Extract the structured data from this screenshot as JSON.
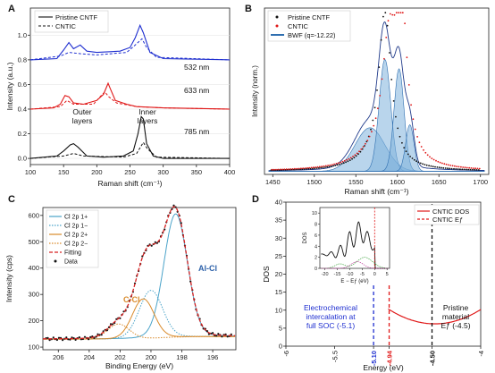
{
  "panel_labels": [
    "A",
    "B",
    "C",
    "D"
  ],
  "colors": {
    "black": "#111111",
    "blue": "#1f2fd0",
    "red": "#e01818",
    "steel": "#2a5fa8",
    "cl1p": "#4aa3c9",
    "cl2p": "#d98a2a",
    "fit": "#d62020",
    "navy": "#203a8a",
    "bwf": "#2f6fb0",
    "fill": "#7fb3dc"
  },
  "chart_data": [
    {
      "id": "A",
      "type": "line",
      "xlabel": "Raman shift (cm⁻¹)",
      "ylabel": "Intensity (a.u.)",
      "xlim": [
        100,
        400
      ],
      "ylim": [
        -0.05,
        1.22
      ],
      "xticks": [
        100,
        150,
        200,
        250,
        300,
        350,
        400
      ],
      "yticks": [
        0.0,
        0.2,
        0.4,
        0.6,
        0.8,
        1.0
      ],
      "legend": [
        "Pristine CNTF",
        "CNTIC"
      ],
      "legend_position": "top-left",
      "series": [
        {
          "name": "785 nm",
          "color": "black",
          "offset": 0.0,
          "solid": [
            [
              100,
              0.0
            ],
            [
              140,
              0.02
            ],
            [
              150,
              0.06
            ],
            [
              160,
              0.11
            ],
            [
              165,
              0.12
            ],
            [
              172,
              0.09
            ],
            [
              185,
              0.02
            ],
            [
              210,
              0.01
            ],
            [
              240,
              0.02
            ],
            [
              255,
              0.06
            ],
            [
              262,
              0.2
            ],
            [
              267,
              0.34
            ],
            [
              270,
              0.32
            ],
            [
              275,
              0.12
            ],
            [
              285,
              0.02
            ],
            [
              300,
              0.0
            ],
            [
              400,
              0.0
            ]
          ],
          "dashed": [
            [
              100,
              0.0
            ],
            [
              150,
              0.02
            ],
            [
              165,
              0.04
            ],
            [
              180,
              0.02
            ],
            [
              240,
              0.01
            ],
            [
              260,
              0.04
            ],
            [
              270,
              0.13
            ],
            [
              276,
              0.08
            ],
            [
              290,
              0.01
            ],
            [
              400,
              0.0
            ]
          ]
        },
        {
          "name": "633 nm",
          "color": "red",
          "offset": 0.0,
          "solid": [
            [
              100,
              0.4
            ],
            [
              135,
              0.41
            ],
            [
              145,
              0.44
            ],
            [
              152,
              0.51
            ],
            [
              158,
              0.5
            ],
            [
              165,
              0.45
            ],
            [
              180,
              0.44
            ],
            [
              200,
              0.47
            ],
            [
              210,
              0.52
            ],
            [
              217,
              0.61
            ],
            [
              220,
              0.57
            ],
            [
              228,
              0.47
            ],
            [
              245,
              0.44
            ],
            [
              260,
              0.42
            ],
            [
              300,
              0.41
            ],
            [
              400,
              0.4
            ]
          ],
          "dashed": [
            [
              100,
              0.4
            ],
            [
              145,
              0.42
            ],
            [
              155,
              0.47
            ],
            [
              165,
              0.44
            ],
            [
              195,
              0.44
            ],
            [
              205,
              0.5
            ],
            [
              212,
              0.54
            ],
            [
              218,
              0.5
            ],
            [
              230,
              0.45
            ],
            [
              260,
              0.42
            ],
            [
              300,
              0.41
            ],
            [
              400,
              0.4
            ]
          ]
        },
        {
          "name": "532 nm",
          "color": "blue",
          "offset": 0.0,
          "solid": [
            [
              100,
              0.8
            ],
            [
              140,
              0.81
            ],
            [
              150,
              0.88
            ],
            [
              158,
              0.94
            ],
            [
              165,
              0.89
            ],
            [
              175,
              0.92
            ],
            [
              185,
              0.87
            ],
            [
              200,
              0.86
            ],
            [
              235,
              0.87
            ],
            [
              250,
              0.9
            ],
            [
              258,
              0.98
            ],
            [
              265,
              1.08
            ],
            [
              270,
              1.02
            ],
            [
              280,
              0.86
            ],
            [
              300,
              0.81
            ],
            [
              400,
              0.8
            ]
          ],
          "dashed": [
            [
              100,
              0.8
            ],
            [
              145,
              0.83
            ],
            [
              158,
              0.86
            ],
            [
              175,
              0.85
            ],
            [
              200,
              0.84
            ],
            [
              245,
              0.86
            ],
            [
              258,
              0.92
            ],
            [
              268,
              0.97
            ],
            [
              275,
              0.9
            ],
            [
              290,
              0.82
            ],
            [
              400,
              0.8
            ]
          ]
        }
      ],
      "labels": [
        "532 nm",
        "633 nm",
        "785 nm",
        "Outer\nlayers",
        "Inner\nlayers"
      ]
    },
    {
      "id": "B",
      "type": "line",
      "xlabel": "Raman shift (cm⁻¹)",
      "ylabel": "Intensity (norm.)",
      "xlim": [
        1440,
        1710
      ],
      "ylim": [
        -0.02,
        1.05
      ],
      "xticks": [
        1450,
        1500,
        1550,
        1600,
        1650,
        1700
      ],
      "legend": [
        "Pristine CNTF",
        "CNTIC",
        "BWF (q=-12.22)"
      ],
      "legend_position": "top-left",
      "pristine_peak": {
        "center": 1585,
        "width": 9
      },
      "cntic_peaks": [
        {
          "center": 1590,
          "amp": 0.72,
          "w": 10
        },
        {
          "center": 1605,
          "amp": 0.95,
          "w": 8
        }
      ],
      "bwf_components": [
        {
          "center": 1567,
          "amp": 0.28,
          "w": 18
        },
        {
          "center": 1585,
          "amp": 0.72,
          "w": 7
        },
        {
          "center": 1602,
          "amp": 0.66,
          "w": 6
        },
        {
          "center": 1615,
          "amp": 0.3,
          "w": 5
        }
      ]
    },
    {
      "id": "C",
      "type": "line",
      "xlabel": "Binding Energy (eV)",
      "ylabel": "Intensity (cps)",
      "xlim": [
        207,
        194.5
      ],
      "ylim": [
        90,
        630
      ],
      "xticks": [
        206,
        204,
        202,
        200,
        198,
        196
      ],
      "yticks": [
        100,
        200,
        300,
        400,
        500,
        600
      ],
      "baseline": 130,
      "legend": [
        "Cl 2p 1+",
        "Cl 2p 1−",
        "Cl 2p 2+",
        "Cl 2p 2−",
        "Fitting",
        "Data"
      ],
      "legend_position": "top-left",
      "components": [
        {
          "name": "Cl 2p 1+",
          "center": 198.4,
          "amp": 450,
          "w": 0.75
        },
        {
          "name": "Cl 2p 1−",
          "center": 200.0,
          "amp": 175,
          "w": 0.75
        },
        {
          "name": "Cl 2p 2+",
          "center": 200.5,
          "amp": 145,
          "w": 0.7
        },
        {
          "name": "Cl 2p 2−",
          "center": 202.1,
          "amp": 55,
          "w": 0.7
        }
      ],
      "labels": [
        "Al-Cl",
        "C-Cl"
      ]
    },
    {
      "id": "D",
      "type": "line",
      "xlabel": "Energy (eV)",
      "ylabel": "DOS",
      "xlim": [
        -6,
        -4
      ],
      "ylim": [
        0,
        40
      ],
      "xticks": [
        -6,
        -5.5,
        -5.1,
        -4.94,
        -4.5,
        -4
      ],
      "xtick_labels": [
        "-6",
        "-5.5",
        "-5.10",
        "-4.94",
        "-4.50",
        "-4"
      ],
      "yticks": [
        0,
        5,
        10,
        15,
        20,
        25,
        30,
        35,
        40
      ],
      "legend": [
        "CNTIC DOS",
        "CNTIC Eƒ"
      ],
      "legend_position": "top-right",
      "dos_min": {
        "energy": -4.47,
        "value": 6.2
      },
      "markers": [
        {
          "energy": -5.1,
          "color": "blue"
        },
        {
          "energy": -4.94,
          "color": "red"
        },
        {
          "energy": -4.5,
          "color": "black"
        }
      ],
      "annotations": [
        "Electrochemical\nintercalation at\nfull SOC (-5.1)",
        "Pristine\nmaterial\nEƒ (-4.5)"
      ],
      "inset": {
        "xlabel": "E − Eƒ (eV)",
        "ylabel": "DOS",
        "xlim": [
          -22,
          6
        ],
        "ylim": [
          0,
          11
        ],
        "xticks": [
          -20,
          -15,
          -10,
          -5,
          0,
          5
        ],
        "yticks": [
          0,
          2,
          4,
          6,
          8,
          10
        ]
      }
    }
  ]
}
